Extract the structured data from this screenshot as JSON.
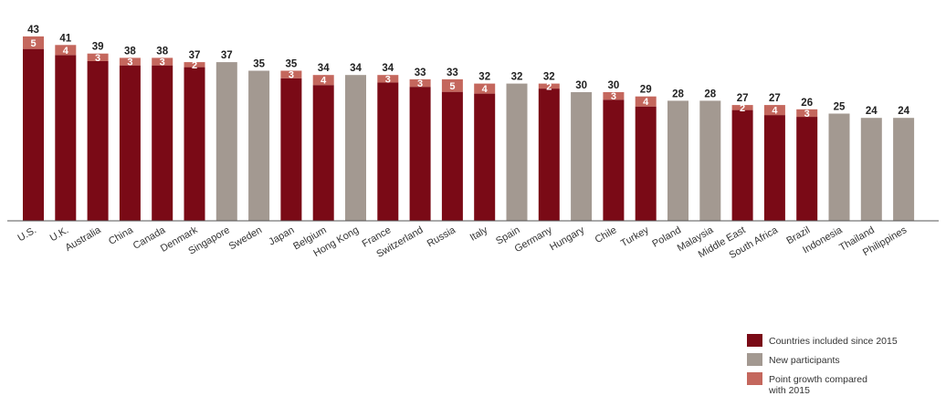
{
  "chart_data": {
    "type": "bar",
    "stacked": true,
    "categories": [
      "U.S.",
      "U.K.",
      "Australia",
      "China",
      "Canada",
      "Denmark",
      "Singapore",
      "Sweden",
      "Japan",
      "Belgium",
      "Hong Kong",
      "France",
      "Switzerland",
      "Russia",
      "Italy",
      "Spain",
      "Germany",
      "Hungary",
      "Chile",
      "Turkey",
      "Poland",
      "Malaysia",
      "Middle East",
      "South Africa",
      "Brazil",
      "Indonesia",
      "Thailand",
      "Philippines"
    ],
    "totals": [
      43,
      41,
      39,
      38,
      38,
      37,
      37,
      35,
      35,
      34,
      34,
      34,
      33,
      33,
      32,
      32,
      32,
      30,
      30,
      29,
      28,
      28,
      27,
      27,
      26,
      25,
      24,
      24
    ],
    "participant_type": [
      "included",
      "included",
      "included",
      "included",
      "included",
      "included",
      "new",
      "new",
      "included",
      "included",
      "new",
      "included",
      "included",
      "included",
      "included",
      "new",
      "included",
      "new",
      "included",
      "included",
      "new",
      "new",
      "included",
      "included",
      "included",
      "new",
      "new",
      "new"
    ],
    "growth": [
      5,
      4,
      3,
      3,
      3,
      2,
      null,
      null,
      3,
      4,
      null,
      3,
      3,
      5,
      4,
      null,
      2,
      null,
      3,
      4,
      null,
      null,
      2,
      4,
      3,
      null,
      null,
      null
    ],
    "ylim": [
      0,
      45
    ],
    "grid": false,
    "legend_position": "bottom-right",
    "legend": [
      {
        "key": "included",
        "label_lines": [
          "Countries included since 2015"
        ],
        "color": "#7a0a16"
      },
      {
        "key": "new",
        "label_lines": [
          "New participants"
        ],
        "color": "#a39991"
      },
      {
        "key": "growth",
        "label_lines": [
          "Point growth compared",
          "with 2015"
        ],
        "color": "#c4675d"
      }
    ],
    "colors": {
      "included": "#7a0a16",
      "new": "#a39991",
      "growth": "#c4675d",
      "baseline": "#555555"
    }
  }
}
